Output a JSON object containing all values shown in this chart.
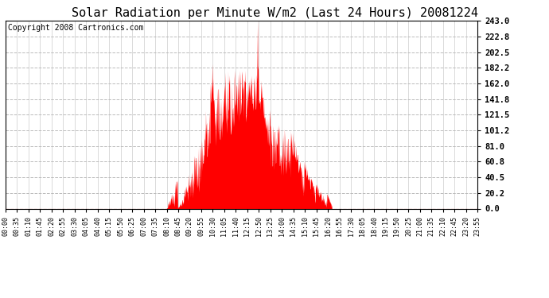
{
  "title": "Solar Radiation per Minute W/m2 (Last 24 Hours) 20081224",
  "copyright": "Copyright 2008 Cartronics.com",
  "yticks": [
    0.0,
    20.2,
    40.5,
    60.8,
    81.0,
    101.2,
    121.5,
    141.8,
    162.0,
    182.2,
    202.5,
    222.8,
    243.0
  ],
  "ymax": 243.0,
  "ymin": 0.0,
  "bar_color": "#ff0000",
  "line_color": "#ff0000",
  "bg_color": "#ffffff",
  "title_fontsize": 11,
  "copyright_fontsize": 7,
  "xtick_labels": [
    "00:00",
    "00:35",
    "01:10",
    "01:45",
    "02:20",
    "02:55",
    "03:30",
    "04:05",
    "04:40",
    "05:15",
    "05:50",
    "06:25",
    "07:00",
    "07:35",
    "08:10",
    "08:45",
    "09:20",
    "09:55",
    "10:30",
    "11:05",
    "11:40",
    "12:15",
    "12:50",
    "13:25",
    "14:00",
    "14:35",
    "15:10",
    "15:45",
    "16:20",
    "16:55",
    "17:30",
    "18:05",
    "18:40",
    "19:15",
    "19:50",
    "20:25",
    "21:00",
    "21:35",
    "22:10",
    "22:45",
    "23:20",
    "23:55"
  ],
  "num_minutes": 1440
}
